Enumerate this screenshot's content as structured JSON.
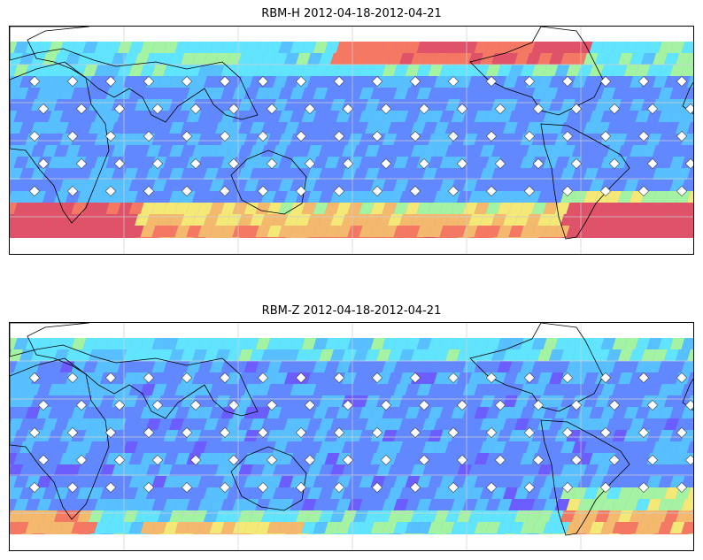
{
  "panels": [
    {
      "title": "RBM-H 2012-04-18-2012-04-21",
      "variant": "H"
    },
    {
      "title": "RBM-Z 2012-04-18-2012-04-21",
      "variant": "Z"
    }
  ],
  "colormap": [
    "#6a5cff",
    "#5f8bff",
    "#57c8ff",
    "#5ff0ff",
    "#a8ff9a",
    "#fff36a",
    "#ffc060",
    "#ff7a55",
    "#e8505a"
  ]
}
